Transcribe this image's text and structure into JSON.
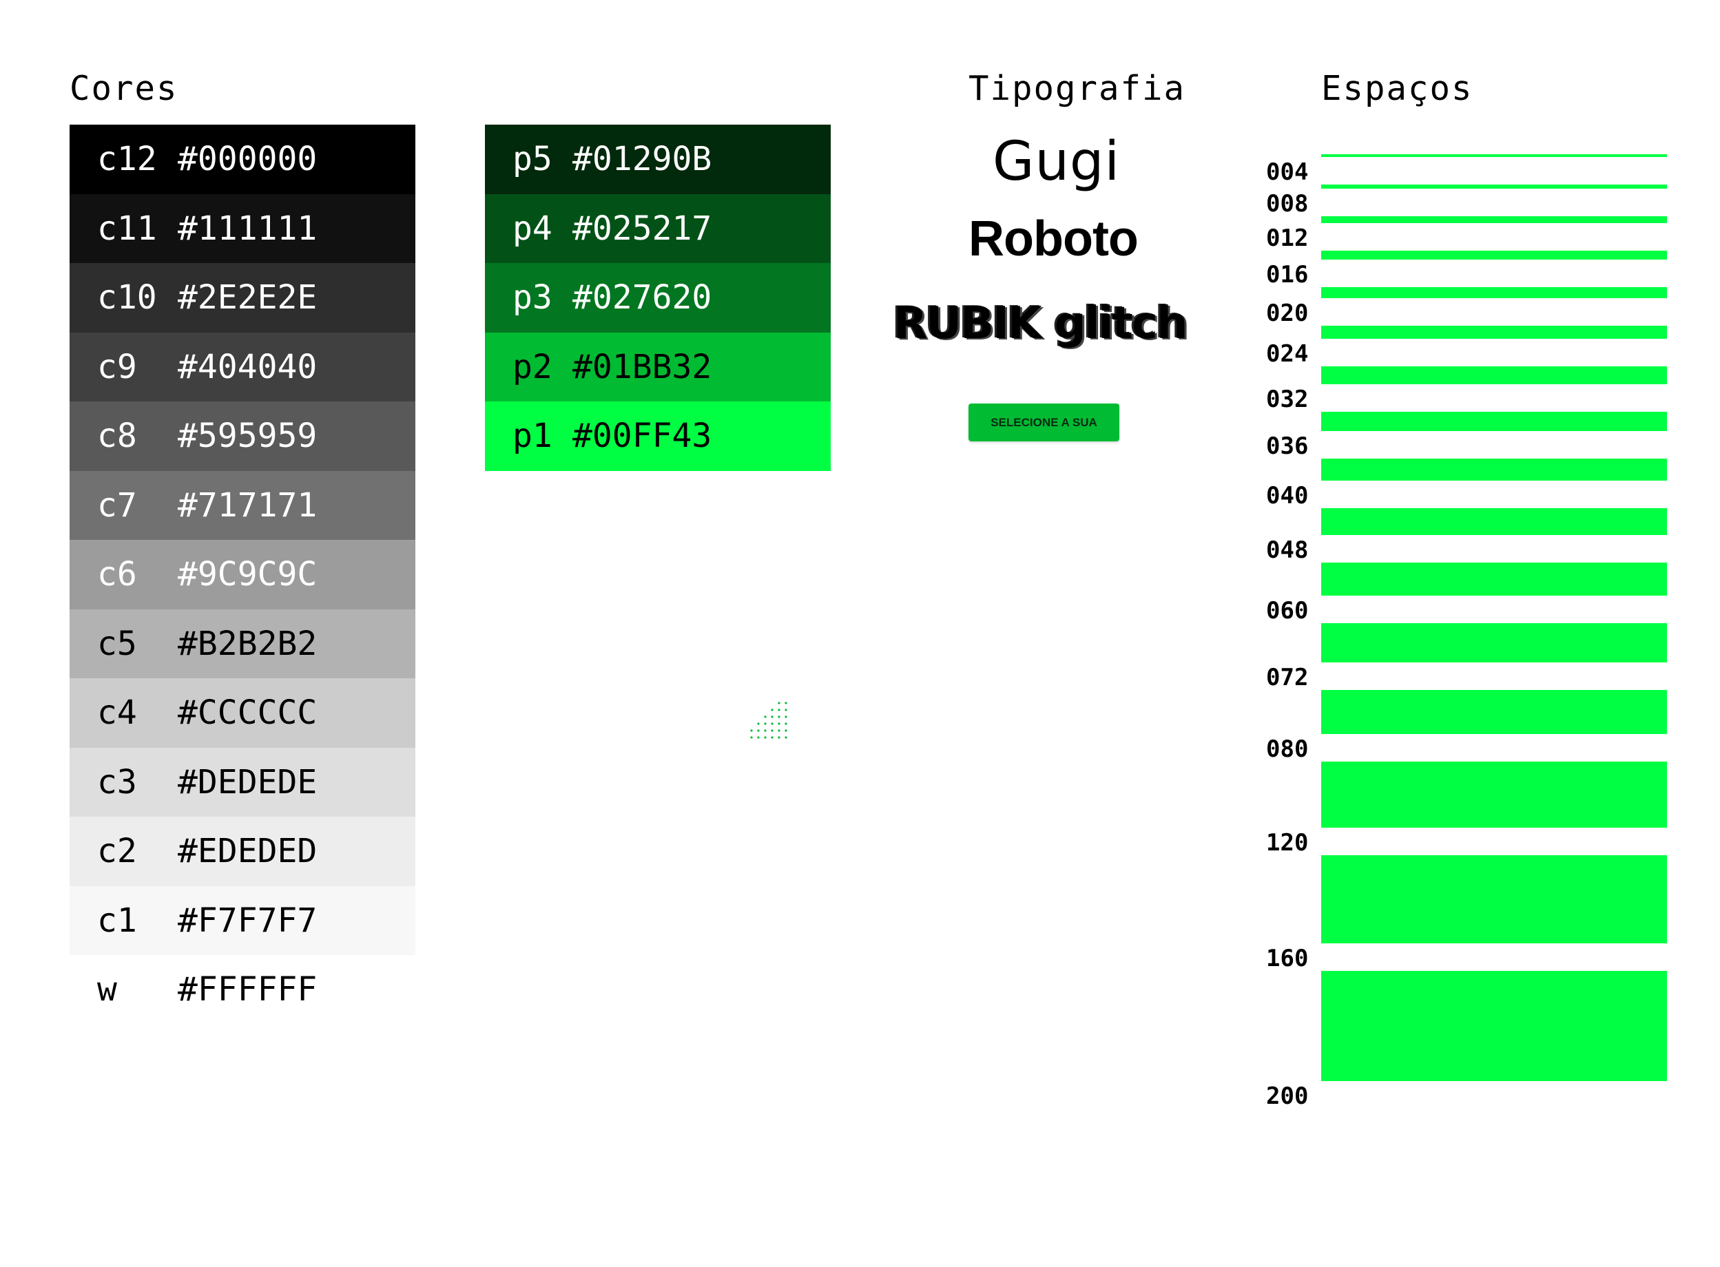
{
  "headings": {
    "colors": "Cores",
    "typography": "Tipografia",
    "spacing": "Espaços"
  },
  "grays": [
    {
      "code": "c12",
      "hex": "#000000",
      "text_color": "#FFFFFF"
    },
    {
      "code": "c11",
      "hex": "#111111",
      "text_color": "#FFFFFF"
    },
    {
      "code": "c10",
      "hex": "#2E2E2E",
      "text_color": "#FFFFFF"
    },
    {
      "code": "c9",
      "hex": "#404040",
      "text_color": "#FFFFFF"
    },
    {
      "code": "c8",
      "hex": "#595959",
      "text_color": "#FFFFFF"
    },
    {
      "code": "c7",
      "hex": "#717171",
      "text_color": "#FFFFFF"
    },
    {
      "code": "c6",
      "hex": "#9C9C9C",
      "text_color": "#FFFFFF"
    },
    {
      "code": "c5",
      "hex": "#B2B2B2",
      "text_color": "#000000"
    },
    {
      "code": "c4",
      "hex": "#CCCCCC",
      "text_color": "#000000"
    },
    {
      "code": "c3",
      "hex": "#DEDEDE",
      "text_color": "#000000"
    },
    {
      "code": "c2",
      "hex": "#EDEDED",
      "text_color": "#000000"
    },
    {
      "code": "c1",
      "hex": "#F7F7F7",
      "text_color": "#000000"
    },
    {
      "code": "w",
      "hex": "#FFFFFF",
      "text_color": "#000000"
    }
  ],
  "greens": [
    {
      "code": "p5",
      "hex": "#01290B",
      "text_color": "#FFFFFF"
    },
    {
      "code": "p4",
      "hex": "#025217",
      "text_color": "#FFFFFF"
    },
    {
      "code": "p3",
      "hex": "#027620",
      "text_color": "#FFFFFF"
    },
    {
      "code": "p2",
      "hex": "#01BB32",
      "text_color": "#000000"
    },
    {
      "code": "p1",
      "hex": "#00FF43",
      "text_color": "#000000"
    }
  ],
  "typography": {
    "fonts": [
      "Gugi",
      "Roboto",
      "RUBIK glitch"
    ],
    "button_label": "SELECIONE A SUA",
    "button_color": "#01BB32"
  },
  "spacing": {
    "bar_color": "#00FF43",
    "tokens": [
      "004",
      "008",
      "012",
      "016",
      "020",
      "024",
      "032",
      "036",
      "040",
      "048",
      "060",
      "072",
      "080",
      "120",
      "160",
      "200"
    ]
  }
}
